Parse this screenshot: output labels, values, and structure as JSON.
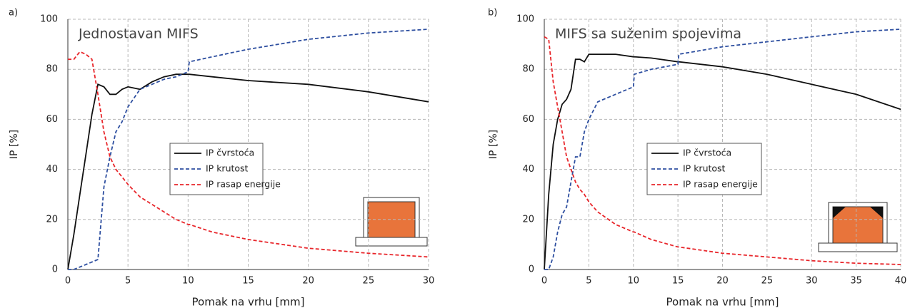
{
  "chart_data": [
    {
      "type": "line",
      "label": "a)",
      "title": "Jednostavan MIFS",
      "x_label": "Pomak na vrhu [mm]",
      "y_label": "IP [%]",
      "x": [
        0,
        0.5,
        1,
        1.5,
        2,
        2.5,
        3,
        3.5,
        4,
        4.5,
        5,
        6,
        7,
        8,
        9,
        10,
        10.1,
        12,
        15,
        20,
        25,
        30
      ],
      "series": [
        {
          "name": "IP čvrstoća",
          "color": "#111111",
          "style": "solid",
          "values": [
            0,
            14,
            30,
            46,
            62,
            74,
            73,
            70,
            70,
            72,
            73,
            72,
            75,
            77,
            78,
            78,
            78,
            77,
            75.5,
            74,
            71,
            67
          ]
        },
        {
          "name": "IP krutost",
          "color": "#2e4fa0",
          "style": "dashed",
          "values": [
            0,
            0,
            1,
            2,
            3,
            4,
            33,
            45,
            55,
            59,
            65,
            72,
            74,
            76,
            77,
            79,
            83,
            85,
            88,
            92,
            94.5,
            96
          ]
        },
        {
          "name": "IP rasap energije",
          "color": "#e8262b",
          "style": "dashed",
          "values": [
            84,
            84,
            87,
            86,
            84,
            70,
            55,
            45,
            40,
            37,
            34,
            29,
            26,
            23,
            20,
            18,
            18,
            15,
            12,
            8.5,
            6.5,
            5
          ]
        }
      ],
      "xlim": [
        0,
        30
      ],
      "xticks": [
        0,
        5,
        10,
        15,
        20,
        25,
        30
      ],
      "ylim": [
        0,
        100
      ],
      "yticks": [
        0,
        20,
        40,
        60,
        80,
        100
      ],
      "grid": true
    },
    {
      "type": "line",
      "label": "b)",
      "title": "MIFS sa suženim spojevima",
      "x_label": "Pomak na vrhu [mm]",
      "y_label": "IP [%]",
      "x": [
        0,
        0.5,
        1,
        1.5,
        2,
        2.5,
        3,
        3.5,
        4,
        4.5,
        5,
        6,
        8,
        10,
        10.1,
        12,
        15,
        15.1,
        20,
        25,
        30,
        35,
        40
      ],
      "series": [
        {
          "name": "IP čvrstoća",
          "color": "#111111",
          "style": "solid",
          "values": [
            0,
            30,
            50,
            60,
            66,
            68,
            72,
            84,
            84,
            83,
            86,
            86,
            86,
            85,
            85,
            84.5,
            83,
            83,
            81,
            78,
            74,
            70,
            64
          ]
        },
        {
          "name": "IP krutost",
          "color": "#2e4fa0",
          "style": "dashed",
          "values": [
            0,
            0,
            5,
            15,
            22,
            25,
            35,
            45,
            45,
            55,
            60,
            67,
            70,
            73,
            78,
            80,
            82,
            86,
            89,
            91,
            93,
            95,
            96
          ]
        },
        {
          "name": "IP rasap energije",
          "color": "#e8262b",
          "style": "dashed",
          "values": [
            93,
            92,
            75,
            65,
            55,
            45,
            40,
            35,
            32,
            30,
            27,
            23,
            18,
            15,
            15,
            12,
            9,
            9,
            6.5,
            5,
            3.5,
            2.5,
            2
          ]
        }
      ],
      "xlim": [
        0,
        40
      ],
      "xticks": [
        0,
        5,
        10,
        15,
        20,
        25,
        30,
        35,
        40
      ],
      "ylim": [
        0,
        100
      ],
      "yticks": [
        0,
        20,
        40,
        60,
        80,
        100
      ],
      "grid": true
    }
  ]
}
